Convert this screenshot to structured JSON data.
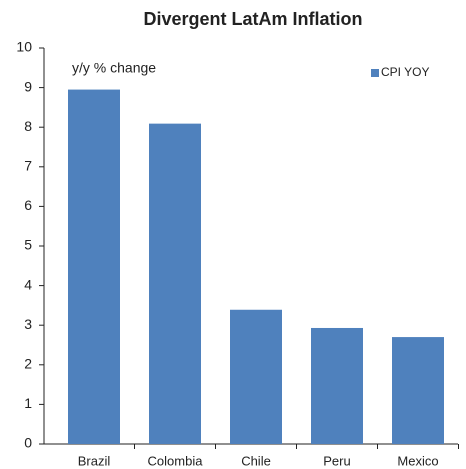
{
  "chart_data": {
    "type": "bar",
    "title": "Divergent LatAm Inflation",
    "annotation": "y/y % change",
    "categories": [
      "Brazil",
      "Colombia",
      "Chile",
      "Peru",
      "Mexico"
    ],
    "series": [
      {
        "name": "CPI YOY",
        "color": "#4f81bd",
        "values": [
          8.95,
          8.09,
          3.39,
          2.93,
          2.7
        ]
      }
    ],
    "ylim": [
      0,
      10
    ],
    "yticks": [
      0,
      1,
      2,
      3,
      4,
      5,
      6,
      7,
      8,
      9,
      10
    ],
    "grid": false,
    "legend": "top-right"
  }
}
